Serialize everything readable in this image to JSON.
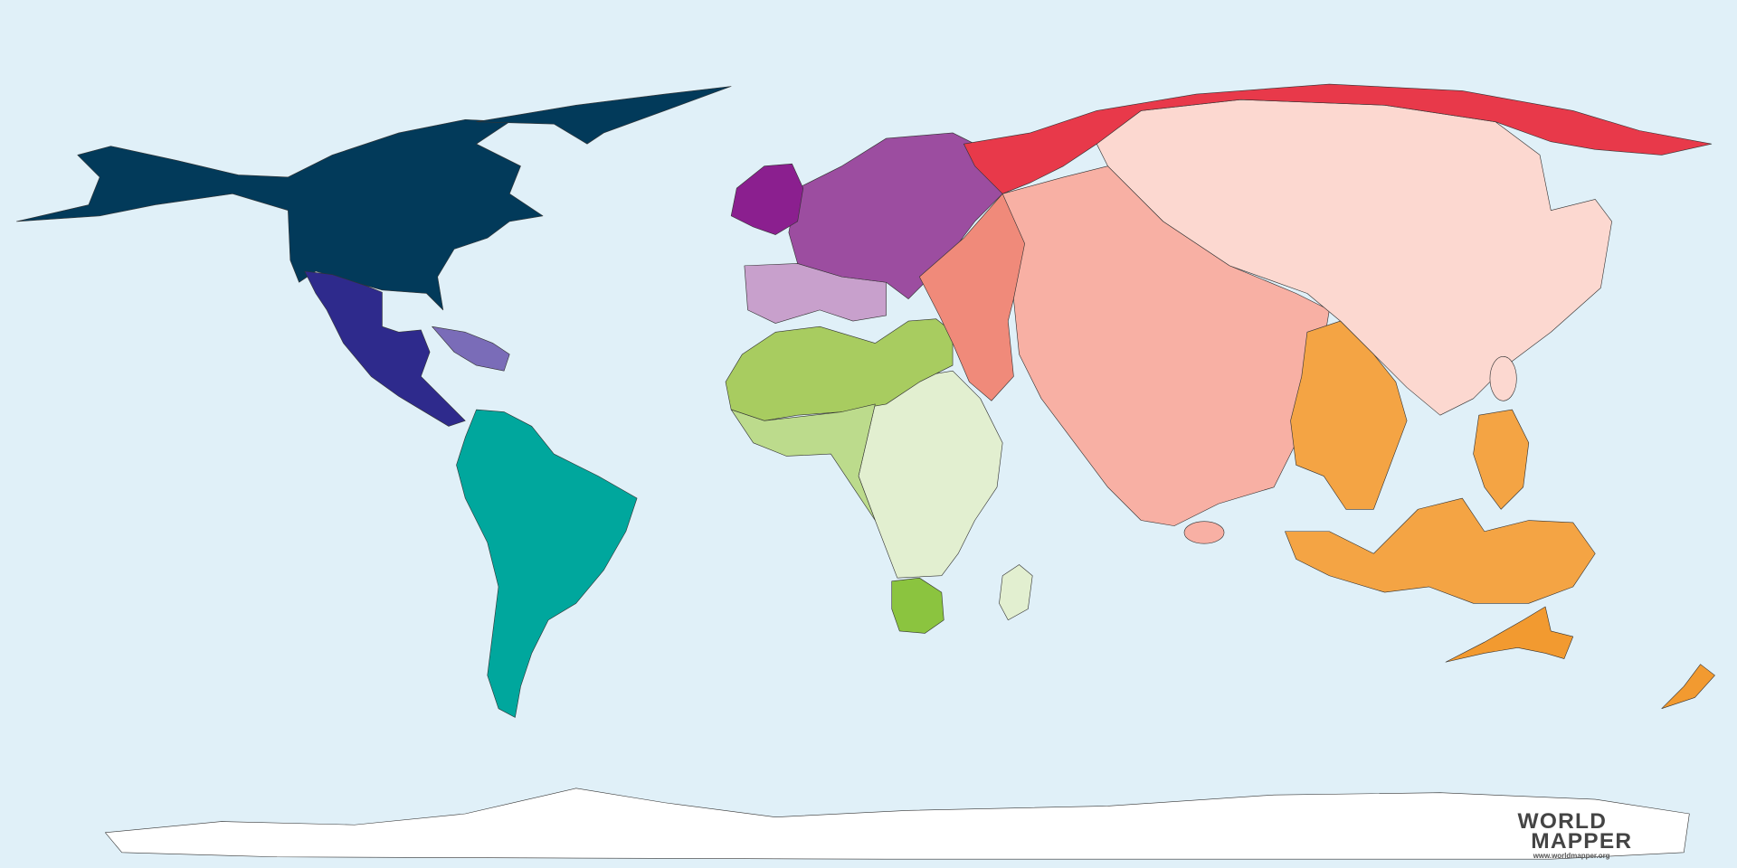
{
  "logo": {
    "line1": "WORLD",
    "line2": "MAPPER",
    "url": "www.worldmapper.org"
  }
}
